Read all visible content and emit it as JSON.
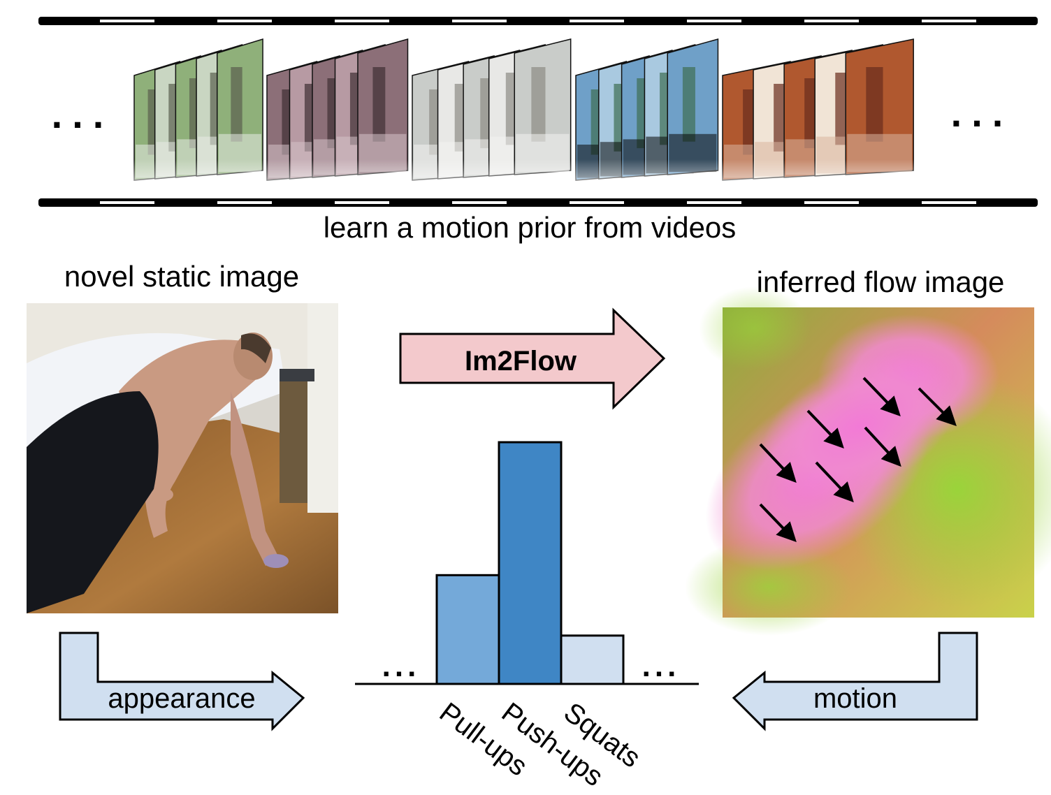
{
  "filmstrip": {
    "caption": "learn a motion prior from videos",
    "left_ellipsis": "...",
    "right_ellipsis": "...",
    "clips": [
      {
        "name": "pull-ups-clip",
        "colors": [
          "#8fb07a",
          "#c9d6c2",
          "#5a5f4e",
          "#e7ebe6"
        ]
      },
      {
        "name": "indoor-clip",
        "colors": [
          "#8c6f78",
          "#b79aa3",
          "#3f2f33",
          "#d6c3c8"
        ]
      },
      {
        "name": "horse-clip",
        "colors": [
          "#c9ccc9",
          "#e8e8e6",
          "#8d8c85",
          "#f2f2f0"
        ]
      },
      {
        "name": "skydive-clip",
        "colors": [
          "#6fa0c8",
          "#a9c9e0",
          "#3e6d53",
          "#0a0a0a"
        ]
      },
      {
        "name": "bench-clip",
        "colors": [
          "#b0582f",
          "#f1e4d6",
          "#6a2c1d",
          "#d8b49e"
        ]
      }
    ]
  },
  "novel_image": {
    "title": "novel static image"
  },
  "flow_image": {
    "title": "inferred flow image"
  },
  "model_arrow": {
    "label": "Im2Flow",
    "fill": "#f3c9cc"
  },
  "appearance_arrow": {
    "label": "appearance",
    "fill": "#d0dff0"
  },
  "motion_arrow": {
    "label": "motion",
    "fill": "#d0dff0"
  },
  "chart_data": {
    "type": "bar",
    "categories": [
      "Pull-ups",
      "Push-ups",
      "Squats"
    ],
    "values": [
      0.45,
      1.0,
      0.2
    ],
    "colors": [
      "#74a9d9",
      "#3f86c5",
      "#d0dff0"
    ],
    "left_ellipsis": "...",
    "right_ellipsis": "...",
    "ylim": [
      0,
      1
    ]
  }
}
